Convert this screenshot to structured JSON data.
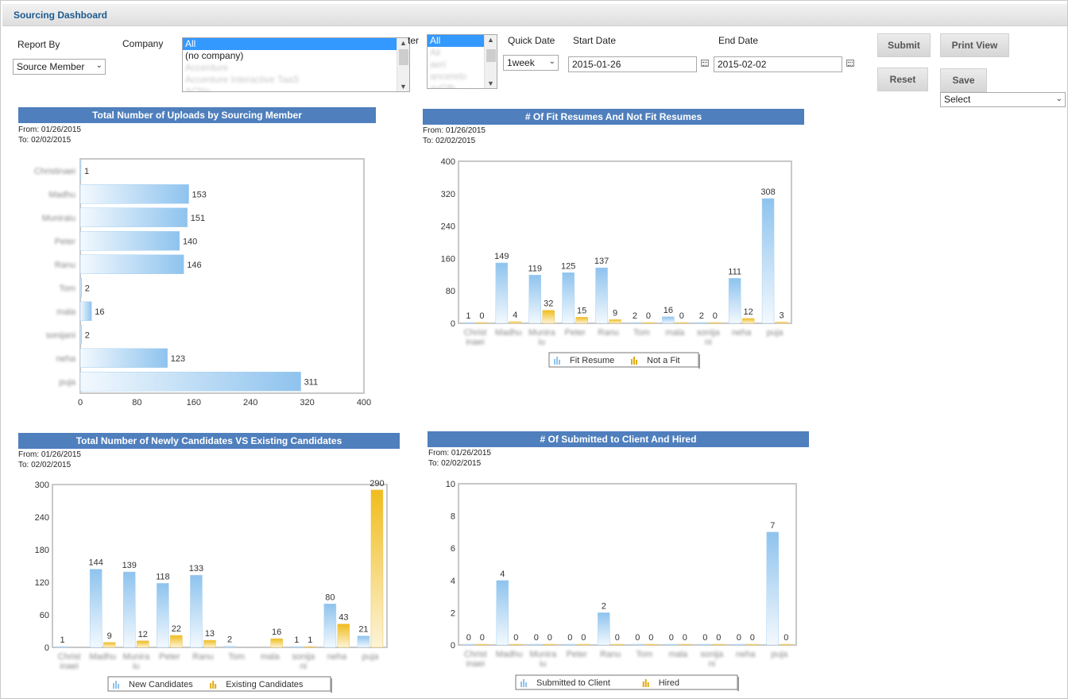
{
  "header": {
    "title": "Sourcing Dashboard"
  },
  "filters": {
    "report_by_label": "Report By",
    "report_by_value": "Source Member",
    "company_label": "Company",
    "company_options": [
      "All",
      "(no company)",
      "Accenture",
      "Accenture Interactive TaaS",
      "ACNo"
    ],
    "filter_label": "ter",
    "filter_options": [
      "All",
      "Ali",
      "aeri",
      "ancerelo",
      "avGfh"
    ],
    "quick_date_label": "Quick Date",
    "quick_date_value": "1week",
    "start_date_label": "Start Date",
    "start_date_value": "2015-01-26",
    "end_date_label": "End Date",
    "end_date_value": "2015-02-02"
  },
  "buttons": {
    "submit": "Submit",
    "print_view": "Print View",
    "reset": "Reset",
    "save": "Save",
    "saved_select": "Select"
  },
  "members": [
    "Christinaei",
    "Madhu",
    "Muniraiu",
    "Peter",
    "Ranu",
    "Tom",
    "mala",
    "sonijani",
    "neha",
    "puja"
  ],
  "chart_data": [
    {
      "type": "bar",
      "orientation": "horizontal",
      "title": "Total Number of Uploads by Sourcing Member",
      "from": "From: 01/26/2015",
      "to": "To: 02/02/2015",
      "categories": [
        "Christinaei",
        "Madhu",
        "Muniraiu",
        "Peter",
        "Ranu",
        "Tom",
        "mala",
        "sonijani",
        "neha",
        "puja"
      ],
      "values": [
        1,
        153,
        151,
        140,
        146,
        2,
        16,
        2,
        123,
        311
      ],
      "xlim": [
        0,
        400
      ],
      "ticks": [
        0,
        80,
        160,
        240,
        320,
        400
      ],
      "colors": {
        "bar": "#8ec3ee"
      }
    },
    {
      "type": "bar",
      "title": "# Of Fit Resumes And Not Fit Resumes",
      "from": "From: 01/26/2015",
      "to": "To: 02/02/2015",
      "categories": [
        "Christinaei",
        "Madhu",
        "Muniraiu",
        "Peter",
        "Ranu",
        "Tom",
        "mala",
        "sonijani",
        "neha",
        "puja"
      ],
      "series": [
        {
          "name": "Fit Resume",
          "values": [
            1,
            149,
            119,
            125,
            137,
            2,
            16,
            2,
            111,
            308
          ]
        },
        {
          "name": "Not a Fit",
          "values": [
            0,
            4,
            32,
            15,
            9,
            0,
            0,
            0,
            12,
            3
          ]
        }
      ],
      "ylim": [
        0,
        400
      ],
      "ticks": [
        0,
        80,
        160,
        240,
        320,
        400
      ],
      "legend": "bottom",
      "colors": {
        "series1": "#8ec3ee",
        "series2": "#f0bc1c"
      }
    },
    {
      "type": "bar",
      "title": "Total Number of Newly Candidates VS Existing Candidates",
      "from": "From: 01/26/2015",
      "to": "To: 02/02/2015",
      "categories": [
        "Christinaei",
        "Madhu",
        "Muniraiu",
        "Peter",
        "Ranu",
        "Tom",
        "mala",
        "sonijani",
        "neha",
        "puja"
      ],
      "series": [
        {
          "name": "New Candidates",
          "values": [
            1,
            144,
            139,
            118,
            133,
            2,
            null,
            1,
            80,
            21
          ]
        },
        {
          "name": "Existing Candidates",
          "values": [
            null,
            9,
            12,
            22,
            13,
            null,
            16,
            1,
            43,
            290
          ]
        }
      ],
      "ylim": [
        0,
        300
      ],
      "ticks": [
        0,
        60,
        120,
        180,
        240,
        300
      ],
      "legend": "bottom",
      "colors": {
        "series1": "#8ec3ee",
        "series2": "#f0bc1c"
      }
    },
    {
      "type": "bar",
      "title": "# Of Submitted to Client And Hired",
      "from": "From: 01/26/2015",
      "to": "To: 02/02/2015",
      "categories": [
        "Christinaei",
        "Madhu",
        "Muniraiu",
        "Peter",
        "Ranu",
        "Tom",
        "mala",
        "sonijani",
        "neha",
        "puja"
      ],
      "series": [
        {
          "name": "Submitted to Client",
          "values": [
            0,
            4,
            0,
            0,
            2,
            0,
            0,
            0,
            0,
            7
          ]
        },
        {
          "name": "Hired",
          "values": [
            0,
            0,
            0,
            0,
            0,
            0,
            0,
            0,
            0,
            0
          ]
        }
      ],
      "ylim": [
        0,
        10
      ],
      "ticks": [
        0,
        2,
        4,
        6,
        8,
        10
      ],
      "legend": "bottom",
      "colors": {
        "series1": "#8ec3ee",
        "series2": "#f0bc1c"
      }
    }
  ]
}
